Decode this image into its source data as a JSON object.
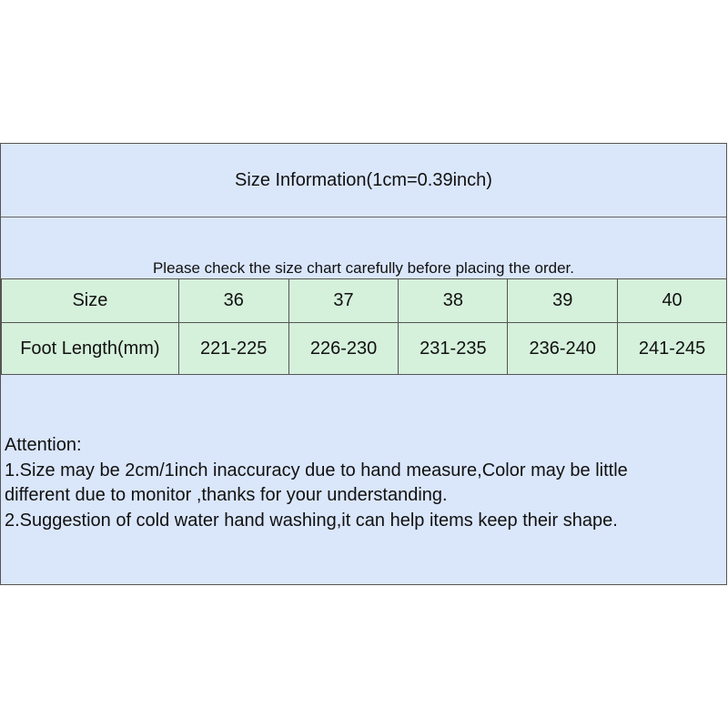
{
  "title": "Size Information(1cm=0.39inch)",
  "note": "Please check the size chart carefully before placing the order.",
  "table": {
    "header": [
      "Size",
      "36",
      "37",
      "38",
      "39",
      "40"
    ],
    "row": [
      "Foot Length(mm)",
      "221-225",
      "226-230",
      "231-235",
      "236-240",
      "241-245"
    ]
  },
  "attention": [
    "Attention:",
    "1.Size may be 2cm/1inch inaccuracy due to hand measure,Color may be little",
    "different due to monitor ,thanks for your understanding.",
    "2.Suggestion of cold water hand washing,it can help items keep their shape."
  ],
  "colors": {
    "panel": "#dae6fa",
    "table": "#d5f0db"
  }
}
